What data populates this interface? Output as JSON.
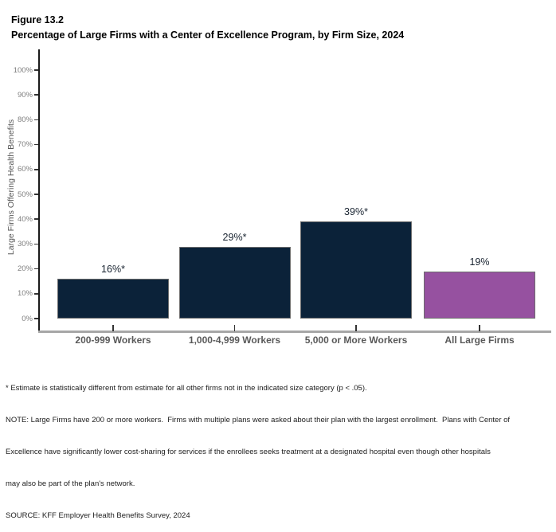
{
  "figure": {
    "label": "Figure 13.2",
    "title": "Percentage of Large Firms with a Center of Excellence Program, by Firm Size, 2024"
  },
  "chart_data": {
    "type": "bar",
    "title": "Percentage of Large Firms with a Center of Excellence Program, by Firm Size, 2024",
    "categories": [
      "200-999 Workers",
      "1,000-4,999 Workers",
      "5,000 or More Workers",
      "All Large Firms"
    ],
    "values": [
      16,
      29,
      39,
      19
    ],
    "bar_labels": [
      "16%*",
      "29%*",
      "39%*",
      "19%"
    ],
    "bar_colors": [
      "#0b2239",
      "#0b2239",
      "#0b2239",
      "#9651a0"
    ],
    "xlabel": "",
    "ylabel": "Large Firms Offering Health Benefits",
    "ylim": [
      0,
      100
    ],
    "ytick_step": 10,
    "ytick_labels": [
      "0%",
      "10%",
      "20%",
      "30%",
      "40%",
      "50%",
      "60%",
      "70%",
      "80%",
      "90%",
      "100%"
    ],
    "grid": false,
    "legend": "none",
    "colors": {
      "navy": "#0b2239",
      "purple": "#9651a0",
      "bar_border": "#6e6e6e",
      "x_axis_line": "#a6a6a6",
      "y_axis_line": "#1a1a1a",
      "ytick_label": "#7f7f7f",
      "axis_text": "#595959",
      "value_label": "#182330"
    }
  },
  "footnotes": {
    "lines": [
      "* Estimate is statistically different from estimate for all other firms not in the indicated size category (p < .05).",
      "NOTE: Large Firms have 200 or more workers.  Firms with multiple plans were asked about their plan with the largest enrollment.  Plans with Center of",
      "Excellence have significantly lower cost-sharing for services if the enrollees seeks treatment at a designated hospital even though other hospitals",
      "may also be part of the plan's network.",
      "SOURCE: KFF Employer Health Benefits Survey, 2024"
    ]
  }
}
